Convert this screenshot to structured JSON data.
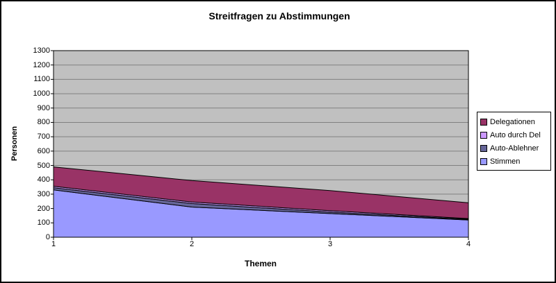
{
  "chart_data": {
    "type": "area",
    "stacked": true,
    "title": "Streitfragen zu Abstimmungen",
    "xlabel": "Themen",
    "ylabel": "Personen",
    "categories": [
      "1",
      "2",
      "3",
      "4"
    ],
    "series": [
      {
        "name": "Stimmen",
        "values": [
          330,
          210,
          165,
          120
        ],
        "color": "#9999FF"
      },
      {
        "name": "Auto-Ablehner",
        "values": [
          15,
          25,
          10,
          5
        ],
        "color": "#666699"
      },
      {
        "name": "Auto durch Del",
        "values": [
          10,
          10,
          10,
          5
        ],
        "color": "#CC99FF"
      },
      {
        "name": "Delegationen",
        "values": [
          135,
          150,
          140,
          110
        ],
        "color": "#993366"
      }
    ],
    "stacked_totals": [
      490,
      395,
      325,
      240
    ],
    "ylim": [
      0,
      1300
    ],
    "ytick_step": 100,
    "grid": true,
    "legend_position": "right",
    "legend_order": [
      "Delegationen",
      "Auto durch Del",
      "Auto-Ablehner",
      "Stimmen"
    ],
    "colors": {
      "plot_background": "#C0C0C0",
      "gridline": "#808080",
      "series_outline": "#000000",
      "axis": "#000000",
      "chart_border": "#000000",
      "text": "#000000"
    }
  }
}
